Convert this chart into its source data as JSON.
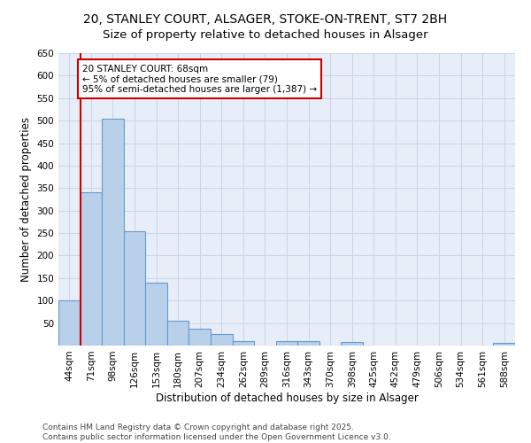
{
  "title": "20, STANLEY COURT, ALSAGER, STOKE-ON-TRENT, ST7 2BH",
  "subtitle": "Size of property relative to detached houses in Alsager",
  "xlabel": "Distribution of detached houses by size in Alsager",
  "ylabel": "Number of detached properties",
  "categories": [
    "44sqm",
    "71sqm",
    "98sqm",
    "126sqm",
    "153sqm",
    "180sqm",
    "207sqm",
    "234sqm",
    "262sqm",
    "289sqm",
    "316sqm",
    "343sqm",
    "370sqm",
    "398sqm",
    "425sqm",
    "452sqm",
    "479sqm",
    "506sqm",
    "534sqm",
    "561sqm",
    "588sqm"
  ],
  "values": [
    100,
    340,
    505,
    255,
    140,
    55,
    38,
    25,
    10,
    0,
    10,
    10,
    0,
    7,
    0,
    0,
    0,
    0,
    0,
    0,
    5
  ],
  "bar_color": "#b8d0ea",
  "bar_edge_color": "#6699cc",
  "annotation_box_text": "20 STANLEY COURT: 68sqm\n← 5% of detached houses are smaller (79)\n95% of semi-detached houses are larger (1,387) →",
  "annotation_box_color": "#ffffff",
  "annotation_box_edge_color": "#cc0000",
  "red_line_x": 0.5,
  "ylim": [
    0,
    650
  ],
  "yticks": [
    0,
    50,
    100,
    150,
    200,
    250,
    300,
    350,
    400,
    450,
    500,
    550,
    600,
    650
  ],
  "footer_text": "Contains HM Land Registry data © Crown copyright and database right 2025.\nContains public sector information licensed under the Open Government Licence v3.0.",
  "background_color": "#ffffff",
  "plot_bg_color": "#e8eef8",
  "grid_color": "#c8d4e8",
  "title_fontsize": 10,
  "axis_fontsize": 8.5,
  "tick_fontsize": 7.5,
  "footer_fontsize": 6.5
}
